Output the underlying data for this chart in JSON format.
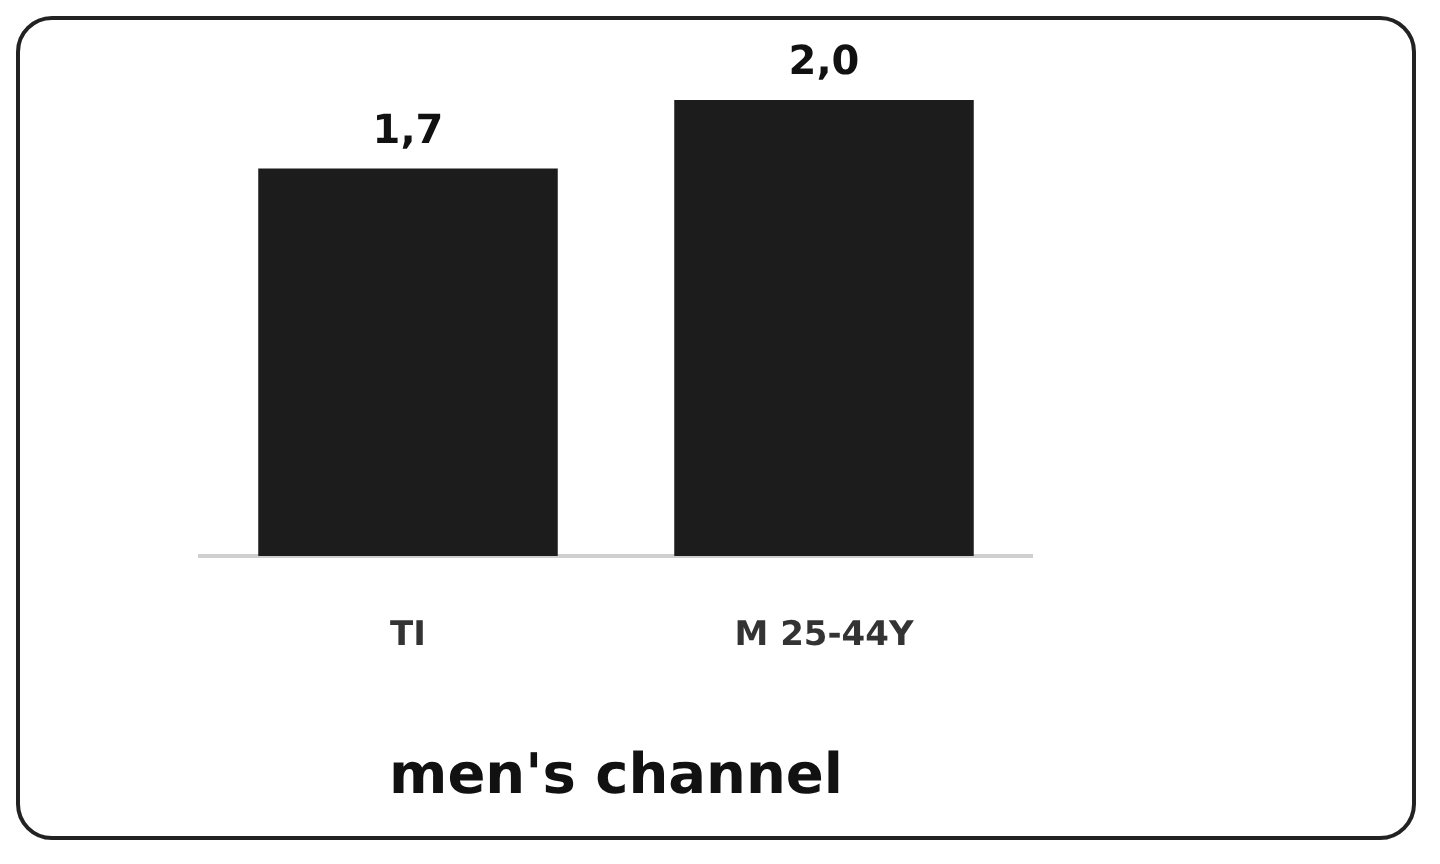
{
  "chart_data": {
    "type": "bar",
    "title": "men's channel",
    "categories": [
      "TI",
      "M 25-44Y"
    ],
    "values": [
      1.7,
      2.0
    ],
    "value_labels": [
      "1,7",
      "2,0"
    ],
    "color": "#1c1c1c",
    "grid": false,
    "legend": false
  }
}
